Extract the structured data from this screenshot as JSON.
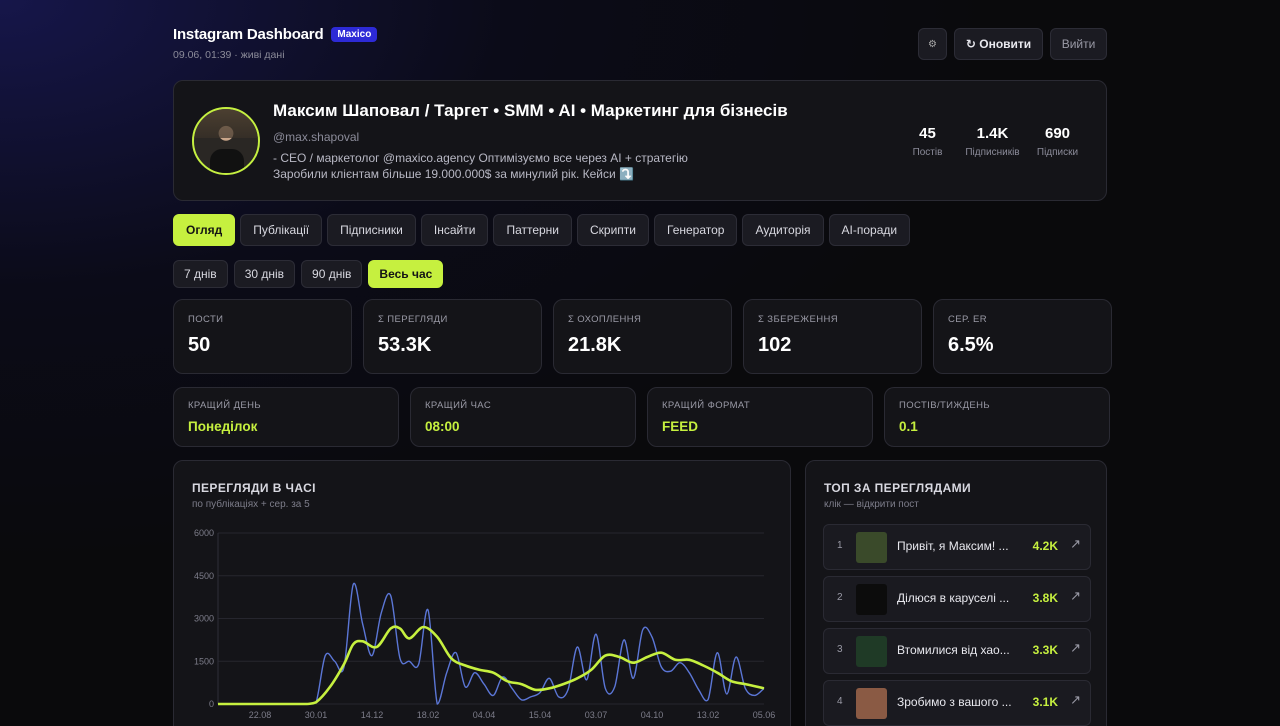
{
  "header": {
    "title": "Instagram Dashboard",
    "badge": "Maxico",
    "subtitle": "09.06, 01:39 · живі дані",
    "settings_icon": "⚙",
    "refresh_label": "↻ Оновити",
    "logout_label": "Вийти"
  },
  "profile": {
    "name": "Максим Шаповал / Таргет • SMM • AI • Маркетинг для бізнесів",
    "handle": "@max.shapoval",
    "bio_line1": "- CEO / маркетолог @maxico.agency Оптимізуємо все через AI + стратегію",
    "bio_line2": "Заробили клієнтам більше 19.000.000$ за минулий рік. Кейси ⤵️",
    "stats": [
      {
        "value": "45",
        "label": "Постів"
      },
      {
        "value": "1.4K",
        "label": "Підписників"
      },
      {
        "value": "690",
        "label": "Підписки"
      }
    ]
  },
  "tabs": [
    {
      "label": "Огляд",
      "active": true
    },
    {
      "label": "Публікації",
      "active": false
    },
    {
      "label": "Підписники",
      "active": false
    },
    {
      "label": "Інсайти",
      "active": false
    },
    {
      "label": "Паттерни",
      "active": false
    },
    {
      "label": "Скрипти",
      "active": false
    },
    {
      "label": "Генератор",
      "active": false
    },
    {
      "label": "Аудиторія",
      "active": false
    },
    {
      "label": "AI-поради",
      "active": false
    }
  ],
  "ranges": [
    {
      "label": "7 днів",
      "active": false
    },
    {
      "label": "30 днів",
      "active": false
    },
    {
      "label": "90 днів",
      "active": false
    },
    {
      "label": "Весь час",
      "active": true
    }
  ],
  "kpis": [
    {
      "label": "ПОСТИ",
      "value": "50"
    },
    {
      "label": "Σ ПЕРЕГЛЯДИ",
      "value": "53.3K"
    },
    {
      "label": "Σ ОХОПЛЕННЯ",
      "value": "21.8K"
    },
    {
      "label": "Σ ЗБЕРЕЖЕННЯ",
      "value": "102"
    },
    {
      "label": "СЕР. ER",
      "value": "6.5%"
    }
  ],
  "bests": [
    {
      "label": "КРАЩИЙ ДЕНЬ",
      "value": "Понеділок"
    },
    {
      "label": "КРАЩИЙ ЧАС",
      "value": "08:00"
    },
    {
      "label": "КРАЩИЙ ФОРМАТ",
      "value": "FEED"
    },
    {
      "label": "ПОСТІВ/ТИЖДЕНЬ",
      "value": "0.1"
    }
  ],
  "chart_card": {
    "title": "ПЕРЕГЛЯДИ В ЧАСІ",
    "subtitle": "по публікаціях + сер. за 5"
  },
  "top_card": {
    "title": "ТОП ЗА ПЕРЕГЛЯДАМИ",
    "subtitle": "клік — відкрити пост",
    "items": [
      {
        "rank": "1",
        "title": "Привіт, я Максим! ...",
        "views": "4.2K",
        "thumb": "#3a4a2a",
        "arrow": "↗"
      },
      {
        "rank": "2",
        "title": "Ділюся в каруселі ...",
        "views": "3.8K",
        "thumb": "#0c0c0c",
        "arrow": "↗"
      },
      {
        "rank": "3",
        "title": "Втомилися від хао...",
        "views": "3.3K",
        "thumb": "#1f3a26",
        "arrow": "↗"
      },
      {
        "rank": "4",
        "title": "Зробимо з вашого ...",
        "views": "3.1K",
        "thumb": "#8a5a44",
        "arrow": "↗"
      }
    ]
  },
  "colors": {
    "accent": "#c6f03f",
    "series_raw": "#5b76d6",
    "series_avg": "#c6f03f"
  },
  "chart_data": {
    "type": "line",
    "xlabel": "",
    "ylabel": "",
    "y_tick_labels": [
      "0",
      "1500",
      "3000",
      "4500",
      "6000"
    ],
    "x_tick_labels": [
      "22.08",
      "30.01",
      "14.12",
      "18.02",
      "04.04",
      "15.04",
      "03.07",
      "04.10",
      "13.02",
      "05.06"
    ],
    "x_tick_positions": [
      0.9,
      2.1,
      3.3,
      4.5,
      5.7,
      6.9,
      8.1,
      9.3,
      10.5,
      11.7
    ],
    "xlim": [
      0,
      11.7
    ],
    "ylim": [
      0,
      6000
    ],
    "grid": true,
    "series": [
      {
        "x": [
          0,
          0.5,
          1,
          1.5,
          1.9,
          2.1,
          2.3,
          2.5,
          2.7,
          2.9,
          3.1,
          3.3,
          3.5,
          3.7,
          3.9,
          4.1,
          4.3,
          4.5,
          4.7,
          4.9,
          5.1,
          5.3,
          5.5,
          5.7,
          5.9,
          6.1,
          6.3,
          6.5,
          6.7,
          6.9,
          7.1,
          7.3,
          7.5,
          7.7,
          7.9,
          8.1,
          8.3,
          8.5,
          8.7,
          8.9,
          9.1,
          9.3,
          9.5,
          9.7,
          9.9,
          10.1,
          10.3,
          10.5,
          10.7,
          10.9,
          11.1,
          11.3,
          11.5,
          11.7
        ],
        "values": [
          0,
          0,
          0,
          0,
          0,
          50,
          1700,
          1500,
          1300,
          4200,
          2800,
          1700,
          3200,
          3800,
          1600,
          1500,
          1400,
          3300,
          0,
          1100,
          1800,
          600,
          1100,
          700,
          300,
          950,
          550,
          150,
          250,
          400,
          900,
          250,
          500,
          2000,
          850,
          2450,
          550,
          600,
          2250,
          900,
          2600,
          2350,
          1300,
          1150,
          1450,
          1100,
          500,
          150,
          1800,
          350,
          1650,
          550,
          300,
          550
        ]
      },
      {
        "x": [
          0,
          0.5,
          1,
          1.5,
          1.9,
          2.1,
          2.4,
          2.7,
          2.9,
          3.1,
          3.4,
          3.7,
          3.9,
          4.1,
          4.4,
          4.7,
          5,
          5.3,
          5.6,
          5.9,
          6.2,
          6.5,
          6.8,
          7.1,
          7.4,
          7.7,
          8,
          8.3,
          8.6,
          8.9,
          9.2,
          9.5,
          9.8,
          10.1,
          10.4,
          10.7,
          11,
          11.3,
          11.7
        ],
        "values": [
          0,
          0,
          0,
          0,
          0,
          60,
          600,
          1400,
          2100,
          2200,
          2000,
          2650,
          2650,
          2300,
          2700,
          2350,
          1600,
          1350,
          1200,
          1100,
          800,
          700,
          500,
          550,
          700,
          900,
          1200,
          1700,
          1650,
          1450,
          1650,
          1800,
          1550,
          1550,
          1350,
          1100,
          800,
          700,
          550
        ]
      }
    ]
  }
}
